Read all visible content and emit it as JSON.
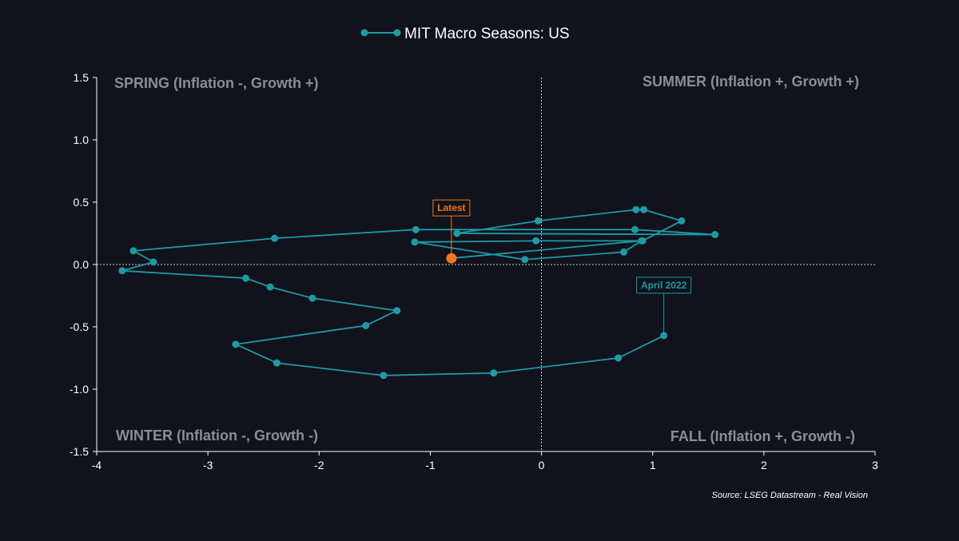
{
  "chart_data": {
    "type": "line",
    "legend": "MIT Macro Seasons: US",
    "series": [
      {
        "name": "MIT Macro Seasons: US",
        "color": "#1c9ba5",
        "points": [
          [
            1.1,
            -0.57
          ],
          [
            0.69,
            -0.75
          ],
          [
            -0.43,
            -0.87
          ],
          [
            -1.42,
            -0.89
          ],
          [
            -2.38,
            -0.79
          ],
          [
            -2.75,
            -0.64
          ],
          [
            -1.58,
            -0.49
          ],
          [
            -1.3,
            -0.37
          ],
          [
            -2.06,
            -0.27
          ],
          [
            -2.44,
            -0.18
          ],
          [
            -2.66,
            -0.11
          ],
          [
            -3.77,
            -0.05
          ],
          [
            -3.49,
            0.02
          ],
          [
            -3.67,
            0.11
          ],
          [
            -2.4,
            0.21
          ],
          [
            -1.13,
            0.28
          ],
          [
            0.84,
            0.28
          ],
          [
            1.56,
            0.24
          ],
          [
            -0.76,
            0.25
          ],
          [
            -0.03,
            0.35
          ],
          [
            0.85,
            0.44
          ],
          [
            0.92,
            0.44
          ],
          [
            1.26,
            0.35
          ],
          [
            0.91,
            0.19
          ],
          [
            -0.05,
            0.19
          ],
          [
            -1.14,
            0.18
          ],
          [
            -0.15,
            0.04
          ],
          [
            0.74,
            0.1
          ],
          [
            0.9,
            0.19
          ],
          [
            -0.81,
            0.05
          ]
        ]
      }
    ],
    "latest_color": "#f07820",
    "xlim": [
      -4,
      3
    ],
    "ylim": [
      -1.5,
      1.5
    ],
    "xticks": [
      -4,
      -3,
      -2,
      -1,
      0,
      1,
      2,
      3
    ],
    "yticks": [
      -1.5,
      -1.0,
      -0.5,
      0.0,
      0.5,
      1.0,
      1.5
    ],
    "ytick_labels": [
      "-1.5",
      "-1.0",
      "-0.5",
      "0.0",
      "0.5",
      "1.0",
      "1.5"
    ],
    "xtick_labels": [
      "-4",
      "-3",
      "-2",
      "-1",
      "0",
      "1",
      "2",
      "3"
    ],
    "quadrants": {
      "spring": "SPRING (Inflation -, Growth +)",
      "summer": "SUMMER (Inflation +, Growth +)",
      "winter": "WINTER (Inflation -, Growth -)",
      "fall": "FALL (Inflation +, Growth -)"
    },
    "annotations": {
      "latest": "Latest",
      "start": "April 2022"
    },
    "source": "Source: LSEG Datastream - Real Vision",
    "grid": false
  }
}
